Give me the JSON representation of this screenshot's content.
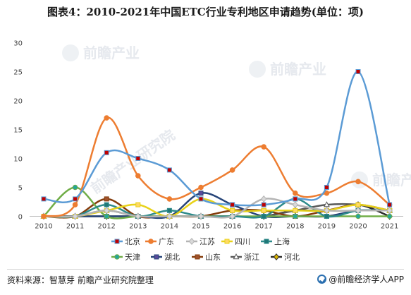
{
  "chart_data": {
    "type": "line",
    "title": "图表4：2010-2021年中国ETC行业专利地区申请趋势(单位：项)",
    "categories": [
      "2010",
      "2011",
      "2012",
      "2013",
      "2014",
      "2015",
      "2016",
      "2017",
      "2018",
      "2019",
      "2020",
      "2021"
    ],
    "ylim": [
      0,
      30
    ],
    "yticks": [
      0,
      5,
      10,
      15,
      20,
      25,
      30
    ],
    "grid": false,
    "legend_position": "bottom",
    "series": [
      {
        "name": "北京",
        "color": "#5b9bd5",
        "marker": "square",
        "marker_fill": "#c00000",
        "values": [
          3,
          3,
          11,
          10,
          8,
          3,
          2,
          2,
          3,
          5,
          25,
          2
        ]
      },
      {
        "name": "广东",
        "color": "#ed7d31",
        "marker": "circle",
        "marker_fill": "#ed7d31",
        "values": [
          0,
          2,
          17,
          7,
          3,
          5,
          8,
          12,
          4,
          4,
          6,
          2
        ]
      },
      {
        "name": "江苏",
        "color": "#b4b4b4",
        "marker": "diamond",
        "marker_fill": "#d9d9d9",
        "values": [
          0,
          0,
          1,
          0,
          0,
          0,
          0,
          3,
          2,
          1,
          1,
          1
        ]
      },
      {
        "name": "四川",
        "color": "#e8d21a",
        "marker": "square",
        "marker_fill": "#ffd966",
        "values": [
          0,
          0,
          1,
          2,
          0,
          3,
          1,
          1,
          1,
          1,
          2,
          1
        ]
      },
      {
        "name": "上海",
        "color": "#2e8b8b",
        "marker": "square",
        "marker_fill": "#1f7878",
        "values": [
          0,
          0,
          2,
          0,
          1,
          0,
          0,
          0,
          3,
          0,
          1,
          1
        ]
      },
      {
        "name": "天津",
        "color": "#70ad47",
        "marker": "circle",
        "marker_fill": "#26a69a",
        "values": [
          0,
          5,
          0,
          0,
          0,
          0,
          0,
          0,
          0,
          0,
          0,
          0
        ]
      },
      {
        "name": "湖北",
        "color": "#264478",
        "marker": "square",
        "marker_fill": "#5a4a9b",
        "values": [
          0,
          0,
          0,
          0,
          0,
          4,
          2,
          0,
          0,
          0,
          1,
          1
        ]
      },
      {
        "name": "山东",
        "color": "#843c0c",
        "marker": "square",
        "marker_fill": "#a0522d",
        "values": [
          0,
          0,
          3,
          0,
          0,
          0,
          1,
          1,
          0,
          1,
          2,
          1
        ]
      },
      {
        "name": "浙江",
        "color": "#595959",
        "marker": "triangle",
        "marker_fill": "#ffffff",
        "values": [
          0,
          0,
          1,
          0,
          0,
          0,
          0,
          0,
          1,
          2,
          2,
          1
        ]
      },
      {
        "name": "河北",
        "color": "#2b2b2b",
        "marker": "diamond",
        "marker_fill": "#d9b300",
        "values": [
          0,
          0,
          0,
          0,
          0,
          0,
          0,
          0,
          1,
          1,
          2,
          0
        ]
      }
    ]
  },
  "watermark": {
    "text": "前瞻产业",
    "text2": "前瞻产业研究院"
  },
  "footer": {
    "source": "资料来源：智慧芽 前瞻产业研究院整理",
    "brand": "@前瞻经济学人APP"
  }
}
